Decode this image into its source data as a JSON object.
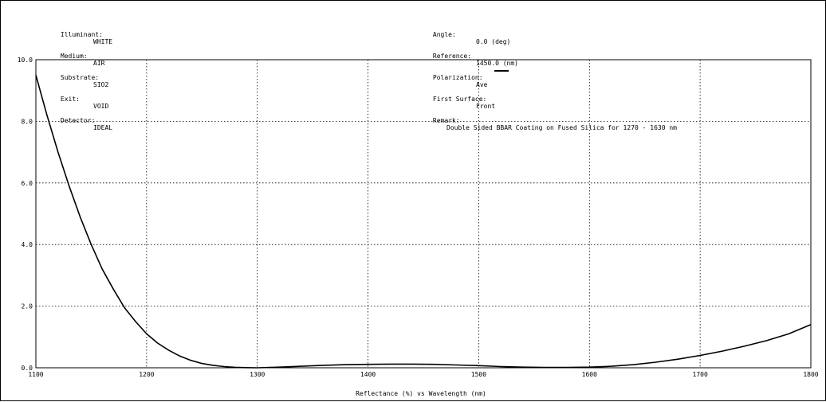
{
  "header_left": [
    {
      "key": "Illuminant:",
      "value": "WHITE"
    },
    {
      "key": "Medium:",
      "value": "AIR"
    },
    {
      "key": "Substrate:",
      "value": "SIO2"
    },
    {
      "key": "Exit:",
      "value": "VOID"
    },
    {
      "key": "Detector:",
      "value": "IDEAL"
    }
  ],
  "header_right": {
    "angle_key": "Angle:",
    "angle_value": "0.0 (deg)",
    "reference_key": "Reference:",
    "reference_value": "1450.0 (nm)",
    "polarization_key": "Polarization:",
    "polarization_value": "Ave",
    "first_surface_key": "First Surface:",
    "first_surface_value": "Front",
    "remark_key": "Remark:",
    "remark_value": "Double Sided BBAR Coating on Fused Silica for 1270 - 1630 nm"
  },
  "chart_data": {
    "type": "line",
    "xlabel": "Reflectance (%)  vs  Wavelength (nm)",
    "ylabel": "",
    "xlim": [
      1100,
      1800
    ],
    "ylim": [
      0,
      10
    ],
    "x_ticks": [
      "1100",
      "1200",
      "1300",
      "1400",
      "1500",
      "1600",
      "1700",
      "1800"
    ],
    "y_ticks": [
      "0.0",
      "2.0",
      "4.0",
      "6.0",
      "8.0",
      "10.0"
    ],
    "grid": "dotted",
    "series": [
      {
        "name": "Ave",
        "color": "#000000",
        "x": [
          1100,
          1110,
          1120,
          1130,
          1140,
          1150,
          1160,
          1170,
          1180,
          1190,
          1200,
          1210,
          1220,
          1230,
          1240,
          1250,
          1260,
          1270,
          1280,
          1290,
          1300,
          1320,
          1340,
          1360,
          1380,
          1400,
          1420,
          1440,
          1460,
          1480,
          1500,
          1520,
          1540,
          1560,
          1580,
          1600,
          1620,
          1640,
          1660,
          1680,
          1700,
          1720,
          1740,
          1760,
          1780,
          1800
        ],
        "y": [
          9.5,
          8.2,
          7.0,
          5.9,
          4.9,
          4.0,
          3.2,
          2.55,
          1.95,
          1.5,
          1.1,
          0.8,
          0.57,
          0.38,
          0.24,
          0.14,
          0.08,
          0.04,
          0.015,
          0.005,
          0.0,
          0.02,
          0.05,
          0.08,
          0.1,
          0.11,
          0.12,
          0.12,
          0.11,
          0.09,
          0.07,
          0.04,
          0.02,
          0.01,
          0.01,
          0.02,
          0.05,
          0.1,
          0.18,
          0.28,
          0.4,
          0.54,
          0.7,
          0.88,
          1.1,
          1.4
        ]
      }
    ]
  }
}
